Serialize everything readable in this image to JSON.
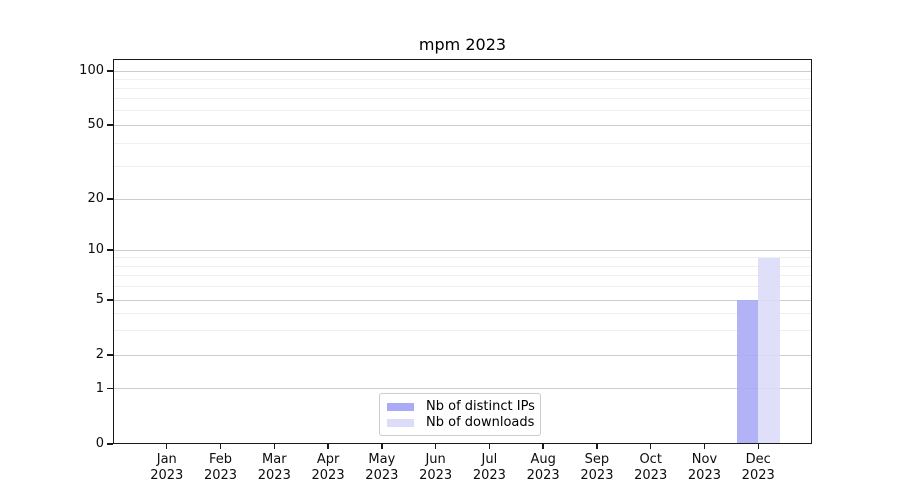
{
  "title": "mpm 2023",
  "chart_data": {
    "type": "bar",
    "title": "mpm 2023",
    "categories": [
      "Jan 2023",
      "Feb 2023",
      "Mar 2023",
      "Apr 2023",
      "May 2023",
      "Jun 2023",
      "Jul 2023",
      "Aug 2023",
      "Sep 2023",
      "Oct 2023",
      "Nov 2023",
      "Dec 2023"
    ],
    "series": [
      {
        "name": "Nb of distinct IPs",
        "color": "#aaaaf6",
        "values": [
          0,
          0,
          0,
          0,
          0,
          0,
          0,
          0,
          0,
          0,
          0,
          5
        ]
      },
      {
        "name": "Nb of downloads",
        "color": "#dcdcf8",
        "values": [
          0,
          0,
          0,
          0,
          0,
          0,
          0,
          0,
          0,
          0,
          0,
          9
        ]
      }
    ],
    "xlabel": "",
    "ylabel": "",
    "ylim": [
      0,
      100
    ],
    "yscale": "log-like",
    "y_major_ticks": [
      100,
      50,
      20,
      10,
      5,
      2,
      1,
      0
    ],
    "y_minor_gridlines": [
      90,
      80,
      70,
      60,
      40,
      30,
      9,
      8,
      7,
      6,
      4,
      3
    ],
    "grid": "on",
    "legend_position": "lower center"
  },
  "colors": {
    "background": "#ffffff",
    "major_grid": "#cdcdcd",
    "minor_grid": "#efefef",
    "axis": "#1a1a1a",
    "text": "#000000",
    "legend_border": "#cccccc"
  }
}
